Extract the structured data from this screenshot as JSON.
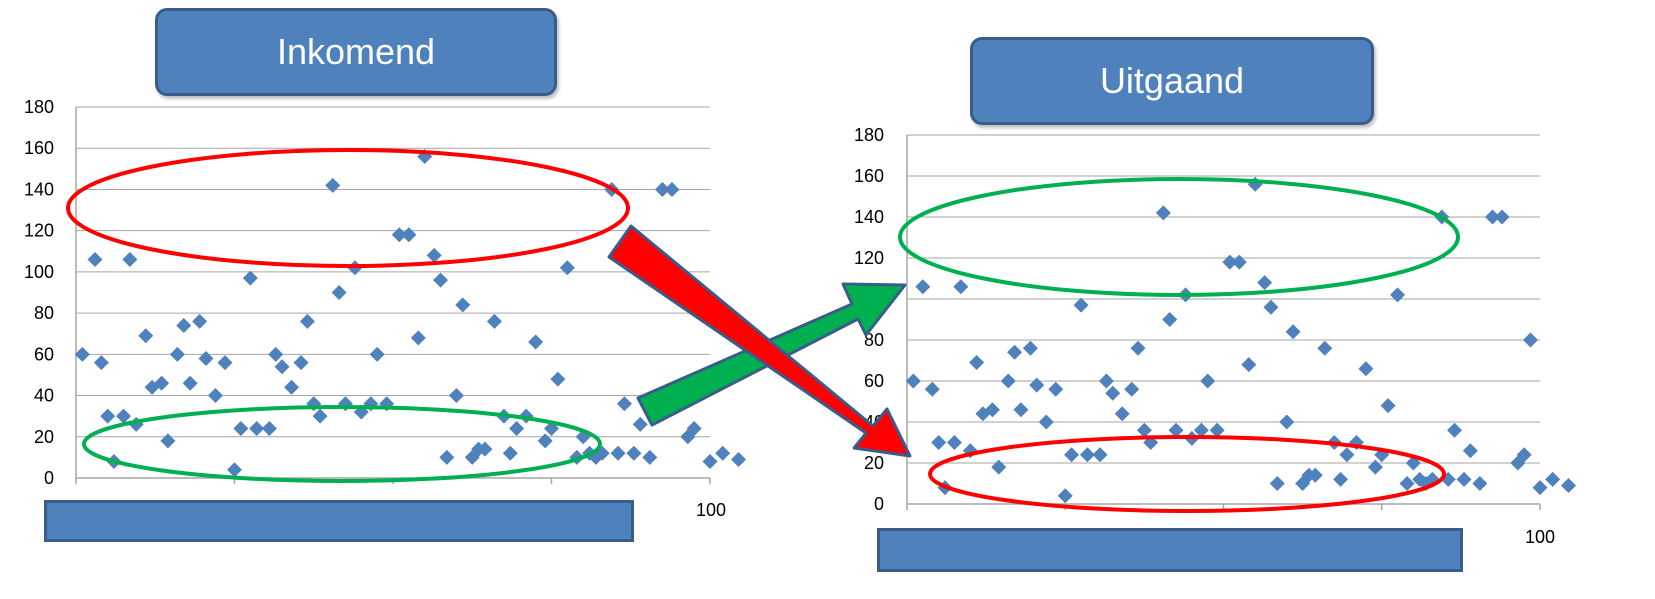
{
  "colors": {
    "marker": "#4f81bd",
    "box_fill": "#4f81bd",
    "box_border": "#385d8a",
    "grid": "#a6a6a6",
    "ellipse_red": "#ff0000",
    "ellipse_green": "#00b050",
    "arrow_red": "#ff0000",
    "arrow_green": "#00b050",
    "arrow_border": "#385d8a"
  },
  "left": {
    "title": "Inkomend",
    "x_tick_label": "100"
  },
  "right": {
    "title": "Uitgaand",
    "x_tick_label": "100"
  },
  "chart_data": [
    {
      "type": "scatter",
      "title": "Inkomend",
      "xlim": [
        0,
        100
      ],
      "ylim": [
        0,
        180
      ],
      "yticks": [
        0,
        20,
        40,
        60,
        80,
        100,
        120,
        140,
        160,
        180
      ],
      "xticks_labeled": [
        "100"
      ],
      "grid": true,
      "marker": "diamond",
      "highlights": [
        {
          "color": "red",
          "y_range": [
            102,
            158
          ],
          "meaning": "high values"
        },
        {
          "color": "green",
          "y_range": [
            2,
            32
          ],
          "meaning": "low values"
        }
      ],
      "points": [
        [
          1,
          60
        ],
        [
          3,
          106
        ],
        [
          4,
          56
        ],
        [
          5,
          30
        ],
        [
          6,
          8
        ],
        [
          7.5,
          30
        ],
        [
          8.5,
          106
        ],
        [
          9.5,
          26
        ],
        [
          11,
          69
        ],
        [
          12,
          44
        ],
        [
          13.5,
          46
        ],
        [
          14.5,
          18
        ],
        [
          16,
          60
        ],
        [
          17,
          74
        ],
        [
          18,
          46
        ],
        [
          19.5,
          76
        ],
        [
          20.5,
          58
        ],
        [
          22,
          40
        ],
        [
          23.5,
          56
        ],
        [
          25,
          4
        ],
        [
          26,
          24
        ],
        [
          27.5,
          97
        ],
        [
          28.5,
          24
        ],
        [
          30.5,
          24
        ],
        [
          31.5,
          60
        ],
        [
          32.5,
          54
        ],
        [
          34,
          44
        ],
        [
          35.5,
          56
        ],
        [
          36.5,
          76
        ],
        [
          37.5,
          36
        ],
        [
          38.5,
          30
        ],
        [
          40.5,
          142
        ],
        [
          41.5,
          90
        ],
        [
          42.5,
          36
        ],
        [
          44,
          102
        ],
        [
          45,
          32
        ],
        [
          46.5,
          36
        ],
        [
          47.5,
          60
        ],
        [
          49,
          36
        ],
        [
          51,
          118
        ],
        [
          52.5,
          118
        ],
        [
          54,
          68
        ],
        [
          55,
          156
        ],
        [
          56.5,
          108
        ],
        [
          57.5,
          96
        ],
        [
          58.5,
          10
        ],
        [
          60,
          40
        ],
        [
          61,
          84
        ],
        [
          62.5,
          10
        ],
        [
          63.5,
          14
        ],
        [
          64.5,
          14
        ],
        [
          66,
          76
        ],
        [
          67.5,
          30
        ],
        [
          68.5,
          12
        ],
        [
          69.5,
          24
        ],
        [
          71,
          30
        ],
        [
          72.5,
          66
        ],
        [
          74,
          18
        ],
        [
          75,
          24
        ],
        [
          76,
          48
        ],
        [
          77.5,
          102
        ],
        [
          79,
          10
        ],
        [
          80,
          20
        ],
        [
          81,
          12
        ],
        [
          82,
          10
        ],
        [
          83,
          12
        ],
        [
          84.5,
          140
        ],
        [
          85.5,
          12
        ],
        [
          86.5,
          36
        ],
        [
          88,
          12
        ],
        [
          89,
          26
        ],
        [
          90.5,
          10
        ],
        [
          92.5,
          140
        ],
        [
          94,
          140
        ],
        [
          96.5,
          20
        ],
        [
          97.5,
          24
        ],
        [
          98.5,
          80
        ],
        [
          100,
          8
        ],
        [
          102,
          12
        ],
        [
          104.5,
          9
        ]
      ]
    },
    {
      "type": "scatter",
      "title": "Uitgaand",
      "xlim": [
        0,
        100
      ],
      "ylim": [
        0,
        180
      ],
      "yticks": [
        0,
        20,
        40,
        60,
        80,
        100,
        120,
        140,
        160,
        180
      ],
      "xticks_labeled": [
        "100"
      ],
      "grid": true,
      "marker": "diamond",
      "highlights": [
        {
          "color": "green",
          "y_range": [
            104,
            158
          ],
          "meaning": "high values"
        },
        {
          "color": "red",
          "y_range": [
            -2,
            34
          ],
          "meaning": "low values"
        }
      ],
      "points": [
        [
          1,
          60
        ],
        [
          2.5,
          106
        ],
        [
          4,
          56
        ],
        [
          5,
          30
        ],
        [
          6,
          8
        ],
        [
          7.5,
          30
        ],
        [
          8.5,
          106
        ],
        [
          10,
          26
        ],
        [
          11,
          69
        ],
        [
          12,
          44
        ],
        [
          13.5,
          46
        ],
        [
          14.5,
          18
        ],
        [
          16,
          60
        ],
        [
          17,
          74
        ],
        [
          18,
          46
        ],
        [
          19.5,
          76
        ],
        [
          20.5,
          58
        ],
        [
          22,
          40
        ],
        [
          23.5,
          56
        ],
        [
          25,
          4
        ],
        [
          26,
          24
        ],
        [
          27.5,
          97
        ],
        [
          28.5,
          24
        ],
        [
          30.5,
          24
        ],
        [
          31.5,
          60
        ],
        [
          32.5,
          54
        ],
        [
          34,
          44
        ],
        [
          35.5,
          56
        ],
        [
          36.5,
          76
        ],
        [
          37.5,
          36
        ],
        [
          38.5,
          30
        ],
        [
          40.5,
          142
        ],
        [
          41.5,
          90
        ],
        [
          42.5,
          36
        ],
        [
          44,
          102
        ],
        [
          45,
          32
        ],
        [
          46.5,
          36
        ],
        [
          47.5,
          60
        ],
        [
          49,
          36
        ],
        [
          51,
          118
        ],
        [
          52.5,
          118
        ],
        [
          54,
          68
        ],
        [
          55,
          156
        ],
        [
          56.5,
          108
        ],
        [
          57.5,
          96
        ],
        [
          58.5,
          10
        ],
        [
          60,
          40
        ],
        [
          61,
          84
        ],
        [
          62.5,
          10
        ],
        [
          63.5,
          14
        ],
        [
          64.5,
          14
        ],
        [
          66,
          76
        ],
        [
          67.5,
          30
        ],
        [
          68.5,
          12
        ],
        [
          69.5,
          24
        ],
        [
          71,
          30
        ],
        [
          72.5,
          66
        ],
        [
          74,
          18
        ],
        [
          75,
          24
        ],
        [
          76,
          48
        ],
        [
          77.5,
          102
        ],
        [
          79,
          10
        ],
        [
          80,
          20
        ],
        [
          81,
          12
        ],
        [
          82,
          10
        ],
        [
          83,
          12
        ],
        [
          84.5,
          140
        ],
        [
          85.5,
          12
        ],
        [
          86.5,
          36
        ],
        [
          88,
          12
        ],
        [
          89,
          26
        ],
        [
          90.5,
          10
        ],
        [
          92.5,
          140
        ],
        [
          94,
          140
        ],
        [
          96.5,
          20
        ],
        [
          97.5,
          24
        ],
        [
          98.5,
          80
        ],
        [
          100,
          8
        ],
        [
          102,
          12
        ],
        [
          104.5,
          9
        ]
      ]
    }
  ]
}
